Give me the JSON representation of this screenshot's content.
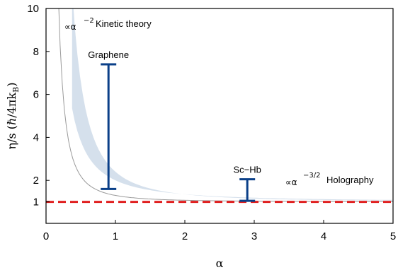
{
  "chart_data": {
    "type": "line",
    "title": "",
    "xlabel": "α",
    "ylabel": "η/s (ℏ/4πk",
    "ylabel_subscript": "B",
    "ylabel_close": ")",
    "xlim": [
      0,
      5
    ],
    "ylim": [
      0,
      10
    ],
    "x_ticks": [
      0,
      1,
      2,
      3,
      4,
      5
    ],
    "y_ticks": [
      1,
      2,
      4,
      6,
      8,
      10
    ],
    "grid": false,
    "band": {
      "name": "Holography / Kinetic theory range",
      "color": "#d5e0ec",
      "alpha_start": 0.375,
      "upper_prefactor": 1.4,
      "upper_exponent": -2,
      "lower_exponent": -1.5
    },
    "curves": [
      {
        "name": "kinetic theory trace",
        "color": "#9a9a9a",
        "prefactor": 0.3,
        "exponent": -2,
        "offset": 1,
        "alpha_start": 0.173
      }
    ],
    "reference_line": {
      "y": 1,
      "color": "#e02020",
      "style": "dashed"
    },
    "error_bars": [
      {
        "label": "Graphene",
        "x": 0.9,
        "y_low": 1.6,
        "y_high": 7.4,
        "color": "#0a3f88"
      },
      {
        "label": "Sc−Hb",
        "x": 2.9,
        "y_low": 1.05,
        "y_high": 2.05,
        "color": "#0a3f88"
      }
    ],
    "annotations": [
      {
        "id": "kinetic",
        "symbol": "∝α",
        "exponent": "−2",
        "text": "Kinetic theory"
      },
      {
        "id": "holography",
        "symbol": "∝α",
        "exponent": "−3/2",
        "text": "Holography"
      }
    ]
  }
}
